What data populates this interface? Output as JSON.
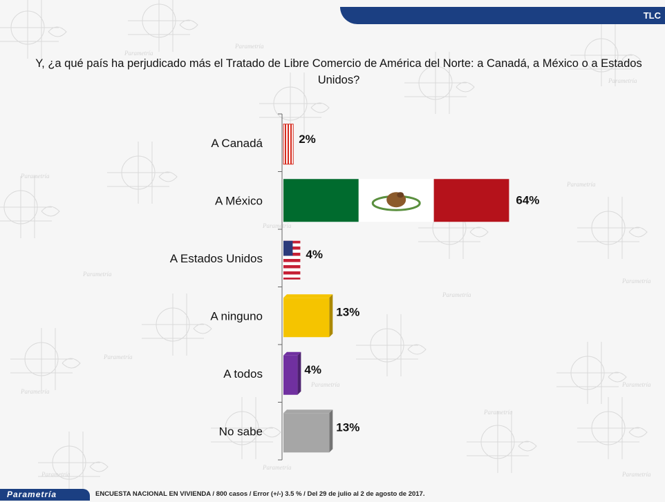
{
  "header": {
    "tag": "TLC"
  },
  "question": "Y, ¿a qué país ha perjudicado más el Tratado de Libre Comercio de América del Norte: a Canadá, a México o a Estados Unidos?",
  "watermark_word": "Parametría",
  "chart_data": {
    "type": "bar",
    "orientation": "horizontal",
    "title": "Y, ¿a qué país ha perjudicado más el Tratado de Libre Comercio de América del Norte: a Canadá, a México o a Estados Unidos?",
    "categories": [
      "A Canadá",
      "A México",
      "A Estados Unidos",
      "A ninguno",
      "A todos",
      "No sabe"
    ],
    "values": [
      2,
      64,
      4,
      13,
      4,
      13
    ],
    "value_labels": [
      "2%",
      "64%",
      "4%",
      "13%",
      "4%",
      "13%"
    ],
    "fills": [
      "flag-canada",
      "flag-mexico",
      "flag-usa",
      "#f5c400",
      "#7030a0",
      "#a6a6a6"
    ],
    "xlim": [
      0,
      100
    ],
    "grid": false,
    "legend": "none"
  },
  "footer": {
    "logo_text": "Parametría",
    "note": "ENCUESTA NACIONAL EN VIVIENDA / 800 casos / Error (+/-) 3.5 % / Del 29 de julio al 2 de agosto de 2017."
  }
}
